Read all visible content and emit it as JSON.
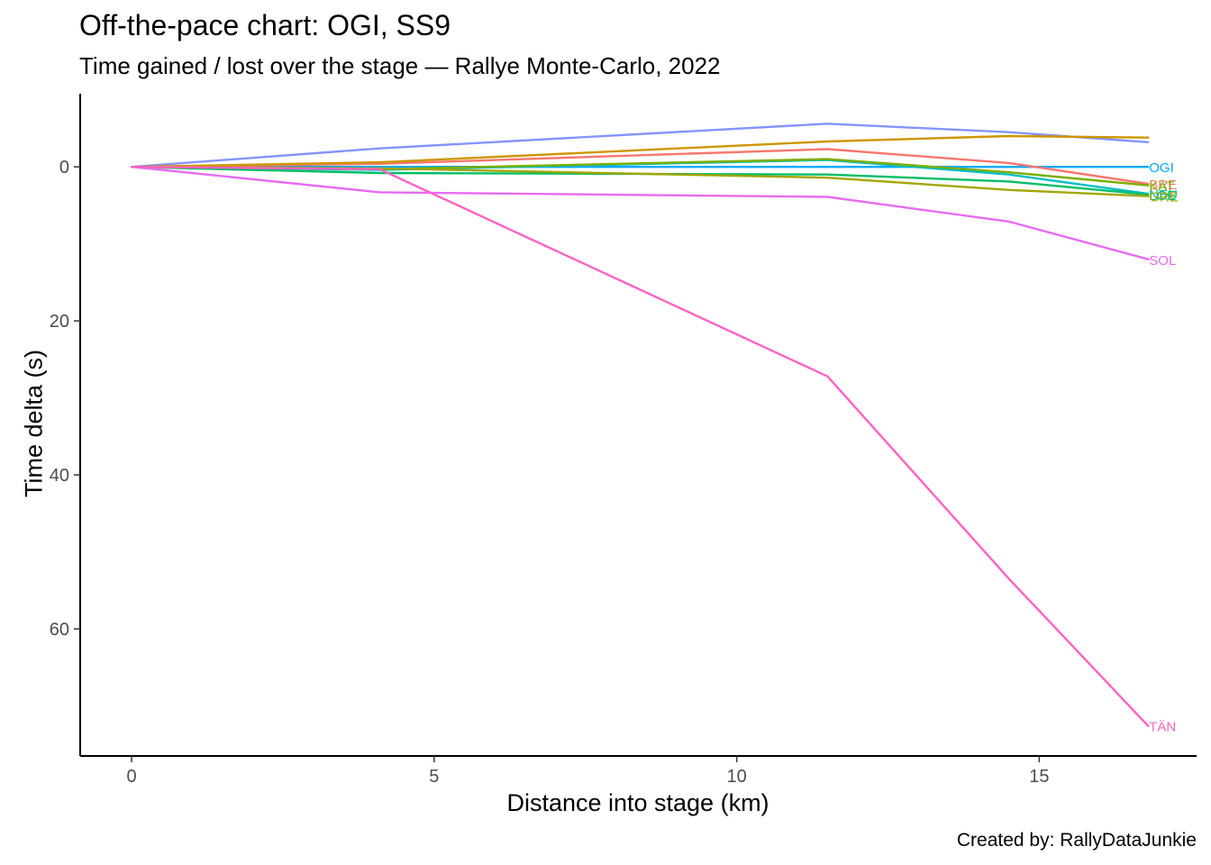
{
  "chart_data": {
    "type": "line",
    "title": "Off-the-pace chart: OGI, SS9",
    "subtitle": "Time gained / lost over the stage — Rallye Monte-Carlo, 2022",
    "caption": "Created by: RallyDataJunkie",
    "xlabel": "Distance into stage (km)",
    "ylabel": "Time delta (s)",
    "xlim": [
      -0.85,
      17.6
    ],
    "ylim": [
      -9.5,
      76.5
    ],
    "y_reversed": true,
    "grid": false,
    "legend": "direct labels at line ends",
    "x_ticks": [
      0,
      5,
      10,
      15
    ],
    "y_ticks": [
      0,
      20,
      40,
      60
    ],
    "x": [
      0,
      4.1,
      11.5,
      14.5,
      16.8
    ],
    "series": [
      {
        "name": "OGI",
        "color": "#00A9FF",
        "values": [
          0,
          0,
          0,
          0,
          0
        ]
      },
      {
        "name": "NEU",
        "color": "#00BFC4",
        "values": [
          0,
          0.4,
          -0.9,
          1.0,
          3.5
        ]
      },
      {
        "name": "BRE",
        "color": "#F8766D",
        "values": [
          0,
          -0.4,
          -2.3,
          -0.5,
          2.2
        ]
      },
      {
        "name": "KAT",
        "color": "#7CAE00",
        "values": [
          0,
          0.3,
          -1.0,
          0.7,
          2.4
        ]
      },
      {
        "name": "LOE",
        "color": "#00BE67",
        "values": [
          0,
          0.8,
          1.0,
          1.9,
          3.6
        ]
      },
      {
        "name": "GRE",
        "color": "#A3A500",
        "values": [
          0,
          0.2,
          1.4,
          3.0,
          3.8
        ]
      },
      {
        "name": "",
        "color": "#8494FF",
        "values": [
          0,
          -2.4,
          -5.6,
          -4.5,
          -3.2
        ]
      },
      {
        "name": "",
        "color": "#CD9600",
        "values": [
          0,
          -0.6,
          -3.3,
          -4.0,
          -3.8
        ]
      },
      {
        "name": "SOL",
        "color": "#E76BF3",
        "values": [
          0,
          3.3,
          3.9,
          7.1,
          12.0
        ]
      },
      {
        "name": "TÄN",
        "color": "#FF61C3",
        "values": [
          0,
          0.3,
          27.2,
          53.5,
          72.6
        ]
      }
    ]
  }
}
